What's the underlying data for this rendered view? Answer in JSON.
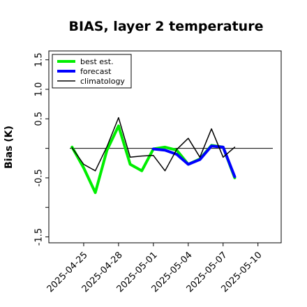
{
  "chart_data": {
    "type": "line",
    "title": "BIAS, layer 2 temperature",
    "xlabel": "",
    "ylabel": "Bias (K)",
    "ylim": [
      -1.6,
      1.65
    ],
    "y_ticks": [
      -1.5,
      -1.0,
      -0.5,
      0.0,
      0.5,
      1.0,
      1.5
    ],
    "y_tick_labels": [
      "-1.5",
      "",
      "-0.5",
      "",
      "0.5",
      "1.0",
      "1.5"
    ],
    "x_ticks": [
      "2025-04-25",
      "2025-04-28",
      "2025-05-01",
      "2025-05-04",
      "2025-05-07",
      "2025-05-10"
    ],
    "x_tick_colors": [
      "#000000",
      "#000000",
      "#228B22",
      "#000000",
      "#000000",
      "#000000"
    ],
    "x_range": [
      "2025-04-22",
      "2025-05-12"
    ],
    "zero_line": true,
    "grid": false,
    "legend_position": "top-left",
    "series": [
      {
        "name": "best est.",
        "color": "#00ee00",
        "x": [
          "2025-04-24",
          "2025-04-25",
          "2025-04-26",
          "2025-04-27",
          "2025-04-28",
          "2025-04-29",
          "2025-04-30",
          "2025-05-01",
          "2025-05-02",
          "2025-05-03",
          "2025-05-04",
          "2025-05-05",
          "2025-05-06",
          "2025-05-07",
          "2025-05-08"
        ],
        "values": [
          0.02,
          -0.33,
          -0.75,
          -0.03,
          0.38,
          -0.27,
          -0.38,
          -0.01,
          0.02,
          -0.03,
          -0.27,
          -0.18,
          0.05,
          0.02,
          -0.5
        ]
      },
      {
        "name": "forecast",
        "color": "#0000ff",
        "x": [
          "2025-05-01",
          "2025-05-02",
          "2025-05-03",
          "2025-05-04",
          "2025-05-05",
          "2025-05-06",
          "2025-05-07",
          "2025-05-08"
        ],
        "values": [
          -0.01,
          -0.03,
          -0.1,
          -0.27,
          -0.19,
          0.04,
          0.02,
          -0.48
        ]
      },
      {
        "name": "climatology",
        "color": "#000000",
        "x": [
          "2025-04-24",
          "2025-04-25",
          "2025-04-26",
          "2025-04-27",
          "2025-04-28",
          "2025-04-29",
          "2025-04-30",
          "2025-05-01",
          "2025-05-02",
          "2025-05-03",
          "2025-05-04",
          "2025-05-05",
          "2025-05-06",
          "2025-05-07",
          "2025-05-08"
        ],
        "values": [
          0.01,
          -0.27,
          -0.38,
          0.03,
          0.52,
          -0.15,
          -0.13,
          -0.12,
          -0.38,
          -0.02,
          0.17,
          -0.15,
          0.33,
          -0.15,
          0.02
        ]
      }
    ]
  }
}
